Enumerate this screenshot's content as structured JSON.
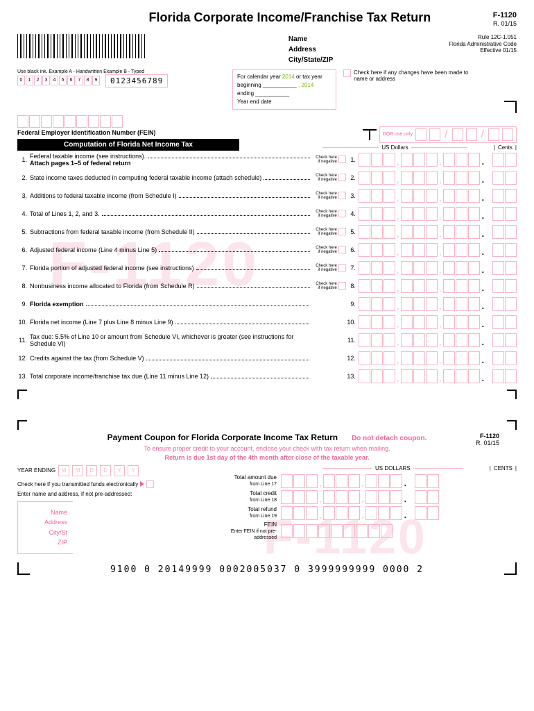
{
  "header": {
    "title": "Florida Corporate Income/Franchise Tax Return",
    "form_code": "F-1120",
    "revision": "R. 01/15",
    "rule": "Rule 12C-1.051",
    "admin": "Florida Administrative Code",
    "effective": "Effective 01/15"
  },
  "name_block": {
    "name": "Name",
    "address": "Address",
    "csz": "City/State/ZIP"
  },
  "ink": {
    "label": "Use black ink.  Example A - Handwritten  Example B - Typed",
    "digits": [
      "0",
      "1",
      "2",
      "3",
      "4",
      "5",
      "6",
      "7",
      "8",
      "9"
    ],
    "typed": "0123456789"
  },
  "calendar": {
    "line1a": "For calendar year ",
    "year1": "2014",
    "line1b": " or tax year",
    "line2": "beginning",
    "year2": ", 2014",
    "line3": "ending",
    "line4": "Year end date"
  },
  "change": {
    "text": "Check here if any changes have been made to name or address"
  },
  "fein": {
    "label": "Federal Employer Identification Number (FEIN)"
  },
  "section": {
    "title": "Computation of Florida Net Income Tax"
  },
  "dor": {
    "label": "DOR use only"
  },
  "cols": {
    "dollars": "US Dollars",
    "cents": "Cents"
  },
  "neg": "Check here if negative",
  "lines": [
    {
      "n": "1.",
      "t": "Federal taxable income (see instructions).",
      "bold": "Attach pages 1–5 of federal return",
      "neg": true,
      "r": "1."
    },
    {
      "n": "2.",
      "t": "State income taxes deducted in computing federal taxable income (attach schedule)",
      "neg": true,
      "r": "2."
    },
    {
      "n": "3.",
      "t": "Additions to federal taxable income (from Schedule I)",
      "neg": true,
      "r": "3."
    },
    {
      "n": "4.",
      "t": "Total of Lines 1, 2, and 3.",
      "neg": true,
      "r": "4."
    },
    {
      "n": "5.",
      "t": "Subtractions from federal taxable income (from Schedule II)",
      "neg": true,
      "r": "5."
    },
    {
      "n": "6.",
      "t": "Adjusted federal income (Line 4 minus Line 5)",
      "neg": true,
      "r": "6."
    },
    {
      "n": "7.",
      "t": "Florida portion of adjusted federal income (see instructions)",
      "neg": true,
      "r": "7."
    },
    {
      "n": "8.",
      "t": "Nonbusiness income allocated to Florida (from Schedule R)",
      "neg": true,
      "r": "8."
    },
    {
      "n": "9.",
      "t": "Florida exemption",
      "boldline": true,
      "neg": false,
      "r": "9."
    },
    {
      "n": "10.",
      "t": "Florida net income (Line 7 plus Line 8 minus Line 9)",
      "neg": false,
      "r": "10."
    },
    {
      "n": "11.",
      "t": "Tax due: 5.5% of Line 10 or amount from Schedule VI, whichever is greater (see instructions for Schedule VI)",
      "neg": false,
      "r": "11."
    },
    {
      "n": "12.",
      "t": "Credits against the tax (from Schedule V)",
      "neg": false,
      "r": "12."
    },
    {
      "n": "13.",
      "t": "Total corporate income/franchise tax due (Line 11 minus Line 12)",
      "neg": false,
      "r": "13."
    }
  ],
  "coupon": {
    "title": "Payment Coupon for Florida Corporate Income Tax Return",
    "no_detach": "Do not detach coupon.",
    "code": "F-1120",
    "rev": "R. 01/15",
    "ensure": "To ensure proper credit to your account, enclose your check with tax return when mailing.",
    "due": "Return is due 1st day of the 4th month after close of the taxable year.",
    "year_ending": "YEAR ENDING",
    "ye_ph": [
      "M",
      "M",
      "D",
      "D",
      "Y",
      "Y"
    ],
    "elec": "Check here if you transmitted funds electronically",
    "enter": "Enter name and address, if not pre-addressed:",
    "addr": [
      "Name",
      "Address",
      "City/St",
      "ZIP"
    ],
    "dollars": "US DOLLARS",
    "cents": "CENTS",
    "rows": [
      {
        "l1": "Total amount due",
        "l2": "from Line 17"
      },
      {
        "l1": "Total credit",
        "l2": "from Line 18"
      },
      {
        "l1": "Total refund",
        "l2": "from Line 19"
      },
      {
        "l1": "FEIN",
        "l2": "Enter FEIN if not pre-addressed"
      }
    ]
  },
  "bottom": "9100  0  20149999  0002005037  0  3999999999  0000  2"
}
